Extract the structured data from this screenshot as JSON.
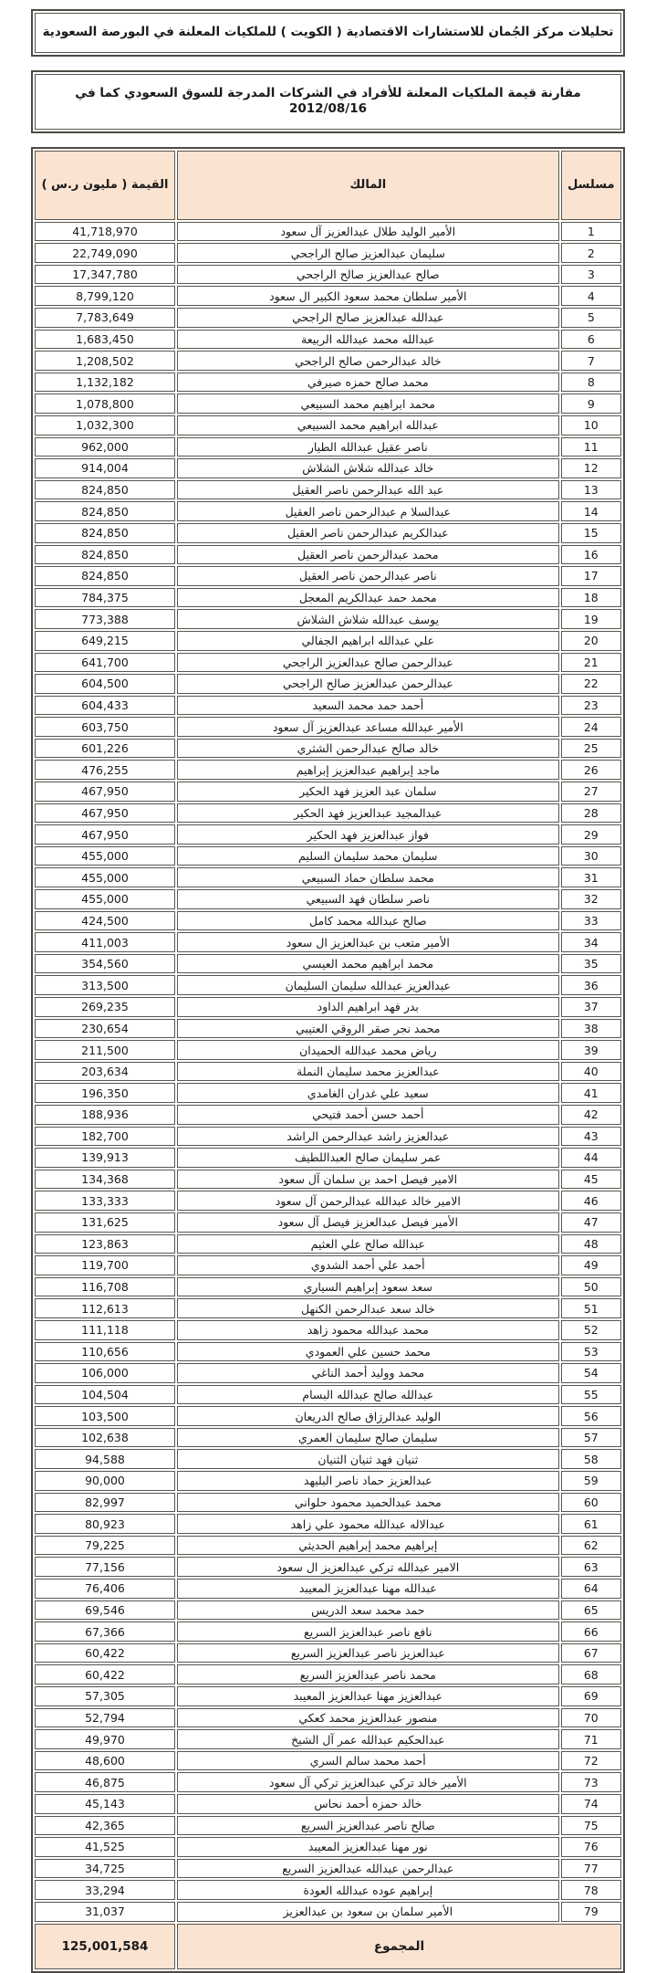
{
  "page": {
    "banner1": "تحليلات مركز الجُمان للاستشارات الاقتصادية ( الكويت ) للملكيات المعلنة في البورصة السعودية",
    "banner2": "مقارنة قيمة الملكيات المعلنة للأفراد في الشركات المدرجة للسوق السعودي كما في 2012/08/16"
  },
  "colors": {
    "header_fill": "#fbe3d2",
    "border": "#4e4a45"
  },
  "table": {
    "headers": {
      "serial": "مسلسل",
      "owner": "المالك",
      "value": "القيمة ( مليون ر.س )"
    },
    "rows": [
      {
        "serial": "1",
        "owner": "الأمير الوليد طلال عبدالعزيز آل سعود",
        "value": "41,718,970"
      },
      {
        "serial": "2",
        "owner": "سليمان عبدالعزيز صالح الراجحي",
        "value": "22,749,090"
      },
      {
        "serial": "3",
        "owner": "صالح عبدالعزيز صالح الراجحي",
        "value": "17,347,780"
      },
      {
        "serial": "4",
        "owner": "الأمير سلطان محمد سعود الكبير ال سعود",
        "value": "8,799,120"
      },
      {
        "serial": "5",
        "owner": "عبدالله عبدالعزيز صالح الراجحي",
        "value": "7,783,649"
      },
      {
        "serial": "6",
        "owner": "عبدالله محمد عبدالله الربيعة",
        "value": "1,683,450"
      },
      {
        "serial": "7",
        "owner": "خالد عبدالرحمن صالح الراجحي",
        "value": "1,208,502"
      },
      {
        "serial": "8",
        "owner": "محمد صالح حمزه صيرفي",
        "value": "1,132,182"
      },
      {
        "serial": "9",
        "owner": "محمد ابراهيم محمد السبيعي",
        "value": "1,078,800"
      },
      {
        "serial": "10",
        "owner": "عبدالله ابراهيم محمد السبيعي",
        "value": "1,032,300"
      },
      {
        "serial": "11",
        "owner": "ناصر عقيل عبدالله الطيار",
        "value": "962,000"
      },
      {
        "serial": "12",
        "owner": "خالد عبدالله شلاش الشلاش",
        "value": "914,004"
      },
      {
        "serial": "13",
        "owner": "عبد الله عبدالرحمن ناصر العقيل",
        "value": "824,850"
      },
      {
        "serial": "14",
        "owner": "عبدالسلا م عبدالرحمن ناصر العقيل",
        "value": "824,850"
      },
      {
        "serial": "15",
        "owner": "عبدالكريم عبدالرحمن ناصر العقيل",
        "value": "824,850"
      },
      {
        "serial": "16",
        "owner": "محمد عبدالرحمن ناصر العقيل",
        "value": "824,850"
      },
      {
        "serial": "17",
        "owner": "ناصر عبدالرحمن ناصر العقيل",
        "value": "824,850"
      },
      {
        "serial": "18",
        "owner": "محمد حمد عبدالكريم المعجل",
        "value": "784,375"
      },
      {
        "serial": "19",
        "owner": "يوسف عبدالله شلاش الشلاش",
        "value": "773,388"
      },
      {
        "serial": "20",
        "owner": "علي عبدالله ابراهيم الجفالي",
        "value": "649,215"
      },
      {
        "serial": "21",
        "owner": "عبدالرحمن صالح عبدالعزيز الراجحي",
        "value": "641,700"
      },
      {
        "serial": "22",
        "owner": "عبدالرحمن عبدالعزيز صالح الراجحي",
        "value": "604,500"
      },
      {
        "serial": "23",
        "owner": "أحمد حمد محمد السعيد",
        "value": "604,433"
      },
      {
        "serial": "24",
        "owner": "الأمير عبدالله مساعد عبدالعزيز آل سعود",
        "value": "603,750"
      },
      {
        "serial": "25",
        "owner": "خالد صالح عبدالرحمن الشثري",
        "value": "601,226"
      },
      {
        "serial": "26",
        "owner": "ماجد إبراهيم عبدالعزيز إبراهيم",
        "value": "476,255"
      },
      {
        "serial": "27",
        "owner": "سلمان عبد العزيز فهد الحكير",
        "value": "467,950"
      },
      {
        "serial": "28",
        "owner": "عبدالمجيد عبدالعزيز فهد الحكير",
        "value": "467,950"
      },
      {
        "serial": "29",
        "owner": "فواز عبدالعزيز فهد الحكير",
        "value": "467,950"
      },
      {
        "serial": "30",
        "owner": "سليمان محمد سليمان السليم",
        "value": "455,000"
      },
      {
        "serial": "31",
        "owner": "محمد سلطان حماد السبيعي",
        "value": "455,000"
      },
      {
        "serial": "32",
        "owner": "ناصر سلطان فهد السبيعي",
        "value": "455,000"
      },
      {
        "serial": "33",
        "owner": "صالح عبدالله محمد كامل",
        "value": "424,500"
      },
      {
        "serial": "34",
        "owner": "الأمير متعب بن عبدالعزيز ال سعود",
        "value": "411,003"
      },
      {
        "serial": "35",
        "owner": "محمد ابراهيم محمد العيسي",
        "value": "354,560"
      },
      {
        "serial": "36",
        "owner": "عبدالعزيز عبدالله سليمان السليمان",
        "value": "313,500"
      },
      {
        "serial": "37",
        "owner": "بدر فهد ابراهيم الداود",
        "value": "269,235"
      },
      {
        "serial": "38",
        "owner": "محمد نجر صقر الروقي العتيبي",
        "value": "230,654"
      },
      {
        "serial": "39",
        "owner": "رياض محمد عبدالله الحميدان",
        "value": "211,500"
      },
      {
        "serial": "40",
        "owner": "عبدالعزيز محمد سليمان النملة",
        "value": "203,634"
      },
      {
        "serial": "41",
        "owner": "سعيد علي غدران الغامدي",
        "value": "196,350"
      },
      {
        "serial": "42",
        "owner": "أحمد حسن أحمد فتيحي",
        "value": "188,936"
      },
      {
        "serial": "43",
        "owner": "عبدالعزيز راشد عبدالرحمن الراشد",
        "value": "182,700"
      },
      {
        "serial": "44",
        "owner": "عمر سليمان صالح العبداللطيف",
        "value": "139,913"
      },
      {
        "serial": "45",
        "owner": "الامير فيصل احمد بن سلمان آل سعود",
        "value": "134,368"
      },
      {
        "serial": "46",
        "owner": "الامير خالد عبدالله عبدالرحمن آل سعود",
        "value": "133,333"
      },
      {
        "serial": "47",
        "owner": "الأمير فيصل عبدالعزيز فيصل آل سعود",
        "value": "131,625"
      },
      {
        "serial": "48",
        "owner": "عبدالله صالح علي العثيم",
        "value": "123,863"
      },
      {
        "serial": "49",
        "owner": "أحمد علي أحمد الشدوي",
        "value": "119,700"
      },
      {
        "serial": "50",
        "owner": "سعد سعود إبراهيم السياري",
        "value": "116,708"
      },
      {
        "serial": "51",
        "owner": "خالد سعد عبدالرحمن الكنهل",
        "value": "112,613"
      },
      {
        "serial": "52",
        "owner": "محمد عبدالله محمود زاهد",
        "value": "111,118"
      },
      {
        "serial": "53",
        "owner": "محمد حسين علي العمودي",
        "value": "110,656"
      },
      {
        "serial": "54",
        "owner": "محمد ووليد أحمد الناغي",
        "value": "106,000"
      },
      {
        "serial": "55",
        "owner": "عبدالله صالح عبدالله البسام",
        "value": "104,504"
      },
      {
        "serial": "56",
        "owner": "الوليد عبدالرزاق صالح الدريعان",
        "value": "103,500"
      },
      {
        "serial": "57",
        "owner": "سليمان صالح سليمان العمري",
        "value": "102,638"
      },
      {
        "serial": "58",
        "owner": "ثنيان فهد ثنيان الثنيان",
        "value": "94,588"
      },
      {
        "serial": "59",
        "owner": "عبدالعزيز حماد ناصر البليهد",
        "value": "90,000"
      },
      {
        "serial": "60",
        "owner": "محمد عبدالحميد محمود حلواني",
        "value": "82,997"
      },
      {
        "serial": "61",
        "owner": "عبدالاله عبدالله محمود علي زاهد",
        "value": "80,923"
      },
      {
        "serial": "62",
        "owner": "إبراهيم محمد إبراهيم الحديثي",
        "value": "79,225"
      },
      {
        "serial": "63",
        "owner": "الامير عبدالله تركي عبدالعزيز ال سعود",
        "value": "77,156"
      },
      {
        "serial": "64",
        "owner": "عبدالله مهنا عبدالعزيز المعيبد",
        "value": "76,406"
      },
      {
        "serial": "65",
        "owner": "حمد محمد سعد الدريس",
        "value": "69,546"
      },
      {
        "serial": "66",
        "owner": "نافع ناصر عبدالعزيز السريع",
        "value": "67,366"
      },
      {
        "serial": "67",
        "owner": "عبدالعزيز ناصر عبدالعزيز السريع",
        "value": "60,422"
      },
      {
        "serial": "68",
        "owner": "محمد ناصر عبدالعزيز السريع",
        "value": "60,422"
      },
      {
        "serial": "69",
        "owner": "عبدالعزيز مهنا عبدالعزيز المعيبد",
        "value": "57,305"
      },
      {
        "serial": "70",
        "owner": "منصور عبدالعزيز محمد كعكي",
        "value": "52,794"
      },
      {
        "serial": "71",
        "owner": "عبدالحكيم عبدالله عمر آل الشيخ",
        "value": "49,970"
      },
      {
        "serial": "72",
        "owner": "أحمد محمد سالم السري",
        "value": "48,600"
      },
      {
        "serial": "73",
        "owner": "الأمير خالد تركي عبدالعزيز تركي آل سعود",
        "value": "46,875"
      },
      {
        "serial": "74",
        "owner": "خالد حمزه أحمد نحاس",
        "value": "45,143"
      },
      {
        "serial": "75",
        "owner": "صالح ناصر عبدالعزيز السريع",
        "value": "42,365"
      },
      {
        "serial": "76",
        "owner": "نور مهنا عبدالعزيز المعيبد",
        "value": "41,525"
      },
      {
        "serial": "77",
        "owner": "عبدالرحمن عبدالله عبدالعزيز السريع",
        "value": "34,725"
      },
      {
        "serial": "78",
        "owner": "إبراهيم عوده عبدالله العودة",
        "value": "33,294"
      },
      {
        "serial": "79",
        "owner": "الأمير سلمان بن سعود بن عبدالعزيز",
        "value": "31,037"
      }
    ],
    "total": {
      "label": "المجموع",
      "value": "125,001,584"
    }
  }
}
